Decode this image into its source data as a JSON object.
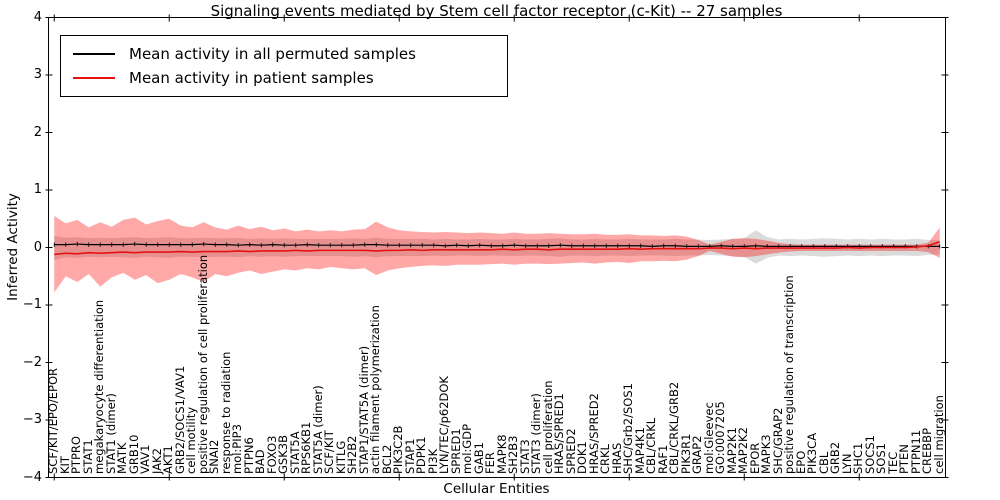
{
  "chart_data": {
    "type": "line",
    "title": "Signaling events mediated by Stem cell factor receptor (c-Kit) -- 27 samples",
    "xlabel": "Cellular Entities",
    "ylabel": "Inferred Activity",
    "ylim": [
      -4,
      4
    ],
    "yticks": [
      -4,
      -3,
      -2,
      -1,
      0,
      1,
      2,
      3,
      4
    ],
    "grid": false,
    "legend_position": "upper left",
    "categories": [
      "SCF/KIT/EPO/EPOR",
      "KIT",
      "PTPRO",
      "STAT1",
      "megakaryocyte differentiation",
      "STAT1 (dimer)",
      "MATK",
      "GRB10",
      "VAV1",
      "JAK2",
      "AKT1",
      "GRB2/SOCS1/VAV1",
      "cell motility",
      "positive regulation of cell proliferation",
      "SNAI2",
      "response to radiation",
      "mol:PIP3",
      "PTPN6",
      "BAD",
      "FOXO3",
      "GSK3B",
      "STAT5A",
      "RPS6KB1",
      "STAT5A (dimer)",
      "SCF/KIT",
      "KITLG",
      "SH2B2",
      "STAP1/STAT5A (dimer)",
      "actin filament polymerization",
      "BCL2",
      "PIK3C2B",
      "STAP1",
      "PDPK1",
      "PI3K",
      "LYN/TEC/p62DOK",
      "SPRED1",
      "mol:GDP",
      "GAB1",
      "FER",
      "MAPK8",
      "SH2B3",
      "STAT3",
      "STAT3 (dimer)",
      "cell proliferation",
      "HRAS/SPRED1",
      "SPRED2",
      "DOK1",
      "HRAS/SPRED2",
      "CRKL",
      "HRAS",
      "SHC/Grb2/SOS1",
      "MAP4K1",
      "CBL/CRKL",
      "RAF1",
      "CBL/CRKL/GRB2",
      "PIK3R1",
      "GRAP2",
      "mol:Gleevec",
      "GO:0007205",
      "MAP2K1",
      "MAP2K2",
      "EPOR",
      "MAPK3",
      "SHC/GRAP2",
      "positive regulation of transcription",
      "EPO",
      "PIK3CA",
      "CBL",
      "GRB2",
      "LYN",
      "SHC1",
      "SOCS1",
      "SOS1",
      "TEC",
      "PTEN",
      "PTPN11",
      "CREBBP",
      "cell migration"
    ],
    "series": [
      {
        "name": "Mean activity in all permuted samples",
        "color": "#000000",
        "values": [
          0.05,
          0.05,
          0.06,
          0.05,
          0.05,
          0.05,
          0.05,
          0.06,
          0.05,
          0.05,
          0.05,
          0.05,
          0.05,
          0.06,
          0.05,
          0.05,
          0.04,
          0.05,
          0.04,
          0.05,
          0.04,
          0.04,
          0.05,
          0.04,
          0.04,
          0.04,
          0.04,
          0.05,
          0.05,
          0.04,
          0.04,
          0.04,
          0.04,
          0.04,
          0.03,
          0.04,
          0.03,
          0.04,
          0.03,
          0.03,
          0.04,
          0.03,
          0.03,
          0.03,
          0.04,
          0.03,
          0.03,
          0.03,
          0.03,
          0.03,
          0.03,
          0.03,
          0.02,
          0.03,
          0.03,
          0.02,
          0.02,
          0.02,
          0.03,
          0.02,
          0.02,
          0.03,
          0.02,
          0.02,
          0.02,
          0.02,
          0.02,
          0.02,
          0.02,
          0.02,
          0.02,
          0.02,
          0.02,
          0.02,
          0.02,
          0.02,
          0.02,
          0.02
        ]
      },
      {
        "name": "Mean activity in patient samples",
        "color": "#e51212",
        "values": [
          -0.12,
          -0.1,
          -0.11,
          -0.09,
          -0.1,
          -0.09,
          -0.08,
          -0.09,
          -0.08,
          -0.08,
          -0.08,
          -0.07,
          -0.08,
          -0.07,
          -0.07,
          -0.07,
          -0.06,
          -0.07,
          -0.06,
          -0.06,
          -0.06,
          -0.05,
          -0.06,
          -0.05,
          -0.05,
          -0.05,
          -0.05,
          -0.05,
          -0.06,
          -0.05,
          -0.05,
          -0.04,
          -0.05,
          -0.04,
          -0.04,
          -0.04,
          -0.04,
          -0.04,
          -0.04,
          -0.03,
          -0.04,
          -0.03,
          -0.03,
          -0.04,
          -0.03,
          -0.03,
          -0.03,
          -0.03,
          -0.03,
          -0.03,
          -0.02,
          -0.03,
          -0.02,
          -0.02,
          -0.02,
          -0.02,
          -0.02,
          -0.01,
          -0.01,
          -0.02,
          -0.01,
          -0.02,
          -0.01,
          -0.01,
          -0.01,
          -0.01,
          -0.01,
          -0.01,
          -0.01,
          0.0,
          -0.01,
          0.0,
          0.0,
          0.0,
          0.0,
          0.01,
          0.03,
          0.1
        ]
      }
    ],
    "bands": [
      {
        "name": "permuted-samples-std-band",
        "color": "#999999",
        "opacity": 0.35,
        "upper": [
          0.2,
          0.17,
          0.18,
          0.16,
          0.17,
          0.16,
          0.17,
          0.18,
          0.16,
          0.17,
          0.18,
          0.16,
          0.16,
          0.17,
          0.16,
          0.16,
          0.17,
          0.15,
          0.16,
          0.15,
          0.16,
          0.15,
          0.15,
          0.15,
          0.15,
          0.15,
          0.16,
          0.15,
          0.17,
          0.15,
          0.15,
          0.15,
          0.15,
          0.14,
          0.15,
          0.14,
          0.14,
          0.15,
          0.14,
          0.14,
          0.15,
          0.14,
          0.14,
          0.15,
          0.16,
          0.14,
          0.14,
          0.15,
          0.14,
          0.14,
          0.15,
          0.14,
          0.14,
          0.14,
          0.15,
          0.14,
          0.14,
          0.13,
          0.14,
          0.15,
          0.16,
          0.3,
          0.18,
          0.14,
          0.15,
          0.14,
          0.15,
          0.16,
          0.15,
          0.14,
          0.15,
          0.14,
          0.15,
          0.14,
          0.14,
          0.15,
          0.13,
          0.12
        ],
        "lower": [
          -0.22,
          -0.17,
          -0.18,
          -0.16,
          -0.17,
          -0.16,
          -0.17,
          -0.18,
          -0.16,
          -0.17,
          -0.18,
          -0.16,
          -0.16,
          -0.17,
          -0.16,
          -0.16,
          -0.17,
          -0.15,
          -0.16,
          -0.15,
          -0.16,
          -0.15,
          -0.15,
          -0.15,
          -0.15,
          -0.15,
          -0.16,
          -0.15,
          -0.17,
          -0.15,
          -0.15,
          -0.15,
          -0.15,
          -0.14,
          -0.15,
          -0.14,
          -0.14,
          -0.15,
          -0.14,
          -0.14,
          -0.15,
          -0.14,
          -0.14,
          -0.15,
          -0.16,
          -0.14,
          -0.14,
          -0.15,
          -0.14,
          -0.14,
          -0.15,
          -0.14,
          -0.14,
          -0.14,
          -0.15,
          -0.14,
          -0.14,
          -0.13,
          -0.14,
          -0.15,
          -0.16,
          -0.28,
          -0.18,
          -0.14,
          -0.15,
          -0.14,
          -0.15,
          -0.16,
          -0.15,
          -0.14,
          -0.15,
          -0.14,
          -0.15,
          -0.14,
          -0.14,
          -0.15,
          -0.13,
          -0.12
        ]
      },
      {
        "name": "patient-samples-std-band",
        "color": "#ff0000",
        "opacity": 0.34,
        "upper": [
          0.55,
          0.42,
          0.48,
          0.35,
          0.44,
          0.36,
          0.48,
          0.52,
          0.4,
          0.46,
          0.5,
          0.38,
          0.35,
          0.44,
          0.35,
          0.31,
          0.38,
          0.32,
          0.36,
          0.3,
          0.33,
          0.28,
          0.31,
          0.28,
          0.3,
          0.28,
          0.31,
          0.32,
          0.45,
          0.35,
          0.3,
          0.28,
          0.27,
          0.26,
          0.27,
          0.26,
          0.25,
          0.26,
          0.25,
          0.24,
          0.26,
          0.24,
          0.24,
          0.25,
          0.24,
          0.23,
          0.23,
          0.24,
          0.22,
          0.22,
          0.23,
          0.21,
          0.21,
          0.2,
          0.21,
          0.19,
          0.13,
          0.05,
          0.1,
          0.15,
          0.16,
          0.15,
          0.12,
          0.08,
          0.06,
          0.05,
          0.05,
          0.05,
          0.05,
          0.05,
          0.05,
          0.05,
          0.05,
          0.05,
          0.05,
          0.05,
          0.08,
          0.35
        ],
        "lower": [
          -0.78,
          -0.5,
          -0.6,
          -0.46,
          -0.68,
          -0.52,
          -0.44,
          -0.56,
          -0.48,
          -0.62,
          -0.56,
          -0.46,
          -0.52,
          -0.6,
          -0.46,
          -0.5,
          -0.44,
          -0.4,
          -0.46,
          -0.42,
          -0.38,
          -0.4,
          -0.36,
          -0.38,
          -0.34,
          -0.36,
          -0.38,
          -0.36,
          -0.48,
          -0.4,
          -0.36,
          -0.34,
          -0.32,
          -0.31,
          -0.32,
          -0.3,
          -0.3,
          -0.3,
          -0.29,
          -0.28,
          -0.3,
          -0.28,
          -0.28,
          -0.29,
          -0.28,
          -0.27,
          -0.26,
          -0.28,
          -0.26,
          -0.25,
          -0.27,
          -0.24,
          -0.24,
          -0.23,
          -0.24,
          -0.21,
          -0.15,
          -0.06,
          -0.11,
          -0.16,
          -0.17,
          -0.15,
          -0.12,
          -0.09,
          -0.07,
          -0.06,
          -0.06,
          -0.06,
          -0.06,
          -0.06,
          -0.06,
          -0.06,
          -0.06,
          -0.06,
          -0.06,
          -0.06,
          -0.08,
          -0.18
        ]
      }
    ]
  }
}
